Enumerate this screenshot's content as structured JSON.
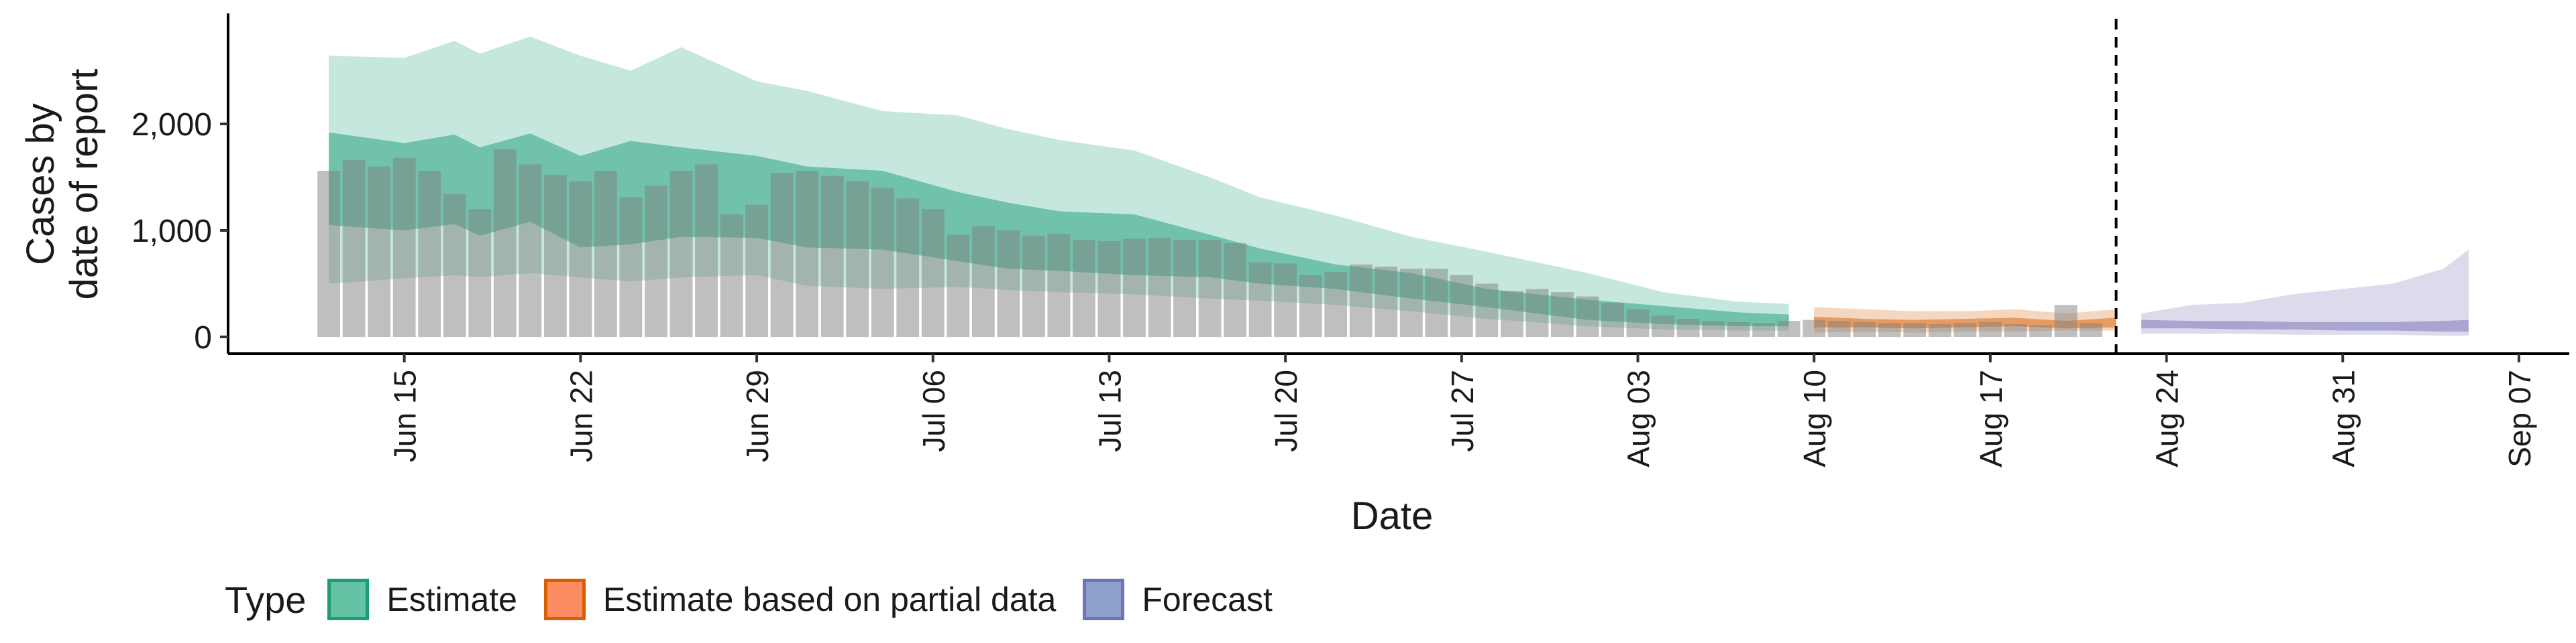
{
  "chart_data": {
    "type": "area",
    "ylabel_lines": [
      "Cases by",
      "date of report"
    ],
    "xlabel": "Date",
    "ylim": [
      0,
      2900
    ],
    "xlim_days": [
      "2020-06-08",
      "2020-09-09"
    ],
    "y_ticks": [
      0,
      1000,
      2000
    ],
    "y_tick_labels": [
      "0",
      "1,000",
      "2,000"
    ],
    "x_ticks": [
      "2020-06-15",
      "2020-06-22",
      "2020-06-29",
      "2020-07-06",
      "2020-07-13",
      "2020-07-20",
      "2020-07-27",
      "2020-08-03",
      "2020-08-10",
      "2020-08-17",
      "2020-08-24",
      "2020-08-31",
      "2020-09-07"
    ],
    "x_tick_labels": [
      "Jun 15",
      "Jun 22",
      "Jun 29",
      "Jul 06",
      "Jul 13",
      "Jul 20",
      "Jul 27",
      "Aug 03",
      "Aug 10",
      "Aug 17",
      "Aug 24",
      "Aug 31",
      "Sep 07"
    ],
    "reported_cases": {
      "start_date": "2020-06-12",
      "values": [
        1560,
        1660,
        1600,
        1680,
        1560,
        1340,
        1200,
        1760,
        1620,
        1520,
        1460,
        1560,
        1310,
        1420,
        1560,
        1620,
        1150,
        1240,
        1540,
        1560,
        1510,
        1460,
        1400,
        1300,
        1200,
        960,
        1040,
        1000,
        950,
        970,
        910,
        900,
        920,
        930,
        910,
        910,
        880,
        700,
        690,
        580,
        610,
        680,
        660,
        640,
        640,
        580,
        500,
        430,
        450,
        420,
        380,
        320,
        260,
        200,
        170,
        150,
        140,
        130,
        150,
        160,
        150,
        140,
        130,
        130,
        120,
        130,
        140,
        120,
        110,
        300,
        130
      ]
    },
    "forecast_start_date": "2020-08-22",
    "series": [
      {
        "name": "Estimate",
        "color": "#1B9E77",
        "dates": [
          "2020-06-12",
          "2020-06-15",
          "2020-06-17",
          "2020-06-18",
          "2020-06-20",
          "2020-06-22",
          "2020-06-24",
          "2020-06-26",
          "2020-06-29",
          "2020-07-01",
          "2020-07-04",
          "2020-07-07",
          "2020-07-09",
          "2020-07-11",
          "2020-07-14",
          "2020-07-17",
          "2020-07-19",
          "2020-07-22",
          "2020-07-25",
          "2020-07-28",
          "2020-08-01",
          "2020-08-04",
          "2020-08-07",
          "2020-08-09"
        ],
        "outer_lower": [
          500,
          550,
          580,
          560,
          600,
          560,
          520,
          560,
          580,
          480,
          450,
          470,
          440,
          420,
          400,
          360,
          340,
          300,
          240,
          170,
          100,
          70,
          60,
          60
        ],
        "outer_upper": [
          2640,
          2620,
          2780,
          2660,
          2820,
          2640,
          2500,
          2720,
          2400,
          2310,
          2120,
          2080,
          1950,
          1850,
          1750,
          1500,
          1310,
          1140,
          940,
          800,
          600,
          420,
          330,
          310
        ],
        "inner_lower": [
          1050,
          1000,
          1060,
          950,
          1080,
          840,
          870,
          940,
          930,
          840,
          820,
          710,
          640,
          620,
          580,
          560,
          500,
          450,
          360,
          280,
          160,
          120,
          100,
          100
        ],
        "inner_upper": [
          1920,
          1820,
          1900,
          1780,
          1910,
          1700,
          1840,
          1780,
          1700,
          1600,
          1560,
          1360,
          1260,
          1180,
          1150,
          960,
          830,
          680,
          600,
          450,
          350,
          290,
          230,
          210
        ]
      },
      {
        "name": "Estimate based on partial data",
        "color": "#D95F02",
        "dates": [
          "2020-08-10",
          "2020-08-12",
          "2020-08-14",
          "2020-08-16",
          "2020-08-18",
          "2020-08-20",
          "2020-08-22"
        ],
        "outer_lower": [
          40,
          50,
          40,
          50,
          50,
          60,
          60
        ],
        "outer_upper": [
          280,
          260,
          240,
          240,
          260,
          220,
          260
        ],
        "inner_lower": [
          90,
          90,
          80,
          90,
          100,
          80,
          90
        ],
        "inner_upper": [
          190,
          170,
          160,
          170,
          180,
          150,
          180
        ]
      },
      {
        "name": "Forecast",
        "color": "#7570B3",
        "dates": [
          "2020-08-23",
          "2020-08-25",
          "2020-08-27",
          "2020-08-29",
          "2020-08-31",
          "2020-09-02",
          "2020-09-04",
          "2020-09-05"
        ],
        "outer_lower": [
          30,
          30,
          30,
          20,
          20,
          20,
          10,
          10
        ],
        "outer_upper": [
          220,
          300,
          320,
          400,
          450,
          500,
          640,
          820
        ],
        "inner_lower": [
          80,
          80,
          70,
          70,
          60,
          60,
          50,
          50
        ],
        "inner_upper": [
          160,
          150,
          150,
          140,
          140,
          140,
          150,
          160
        ]
      }
    ],
    "legend": {
      "title": "Type",
      "position": "bottom",
      "items": [
        {
          "label": "Estimate",
          "color": "#66C2A5",
          "border": "#1B9E77"
        },
        {
          "label": "Estimate based on partial data",
          "color": "#FC8D62",
          "border": "#D95F02"
        },
        {
          "label": "Forecast",
          "color": "#8DA0CB",
          "border": "#7570B3"
        }
      ]
    },
    "grid": false
  }
}
